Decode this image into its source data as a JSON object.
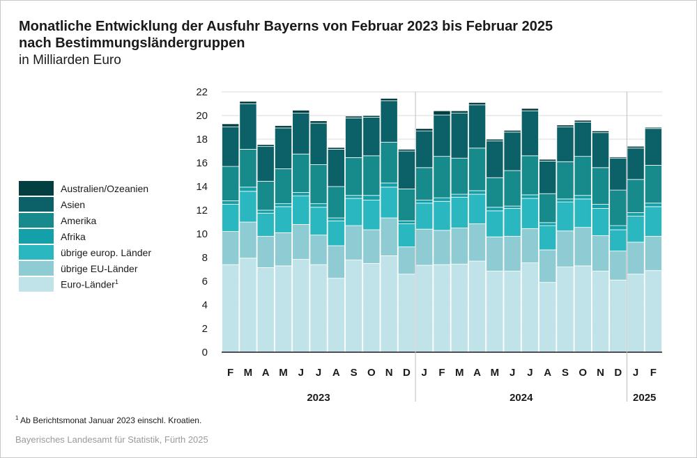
{
  "title_line1": "Monatliche Entwicklung der Ausfuhr Bayerns von Februar 2023 bis Februar 2025",
  "title_line2": "nach Bestimmungsländergruppen",
  "subtitle": "in Milliarden Euro",
  "footnote": {
    "marker": "1",
    "text": "Ab Berichtsmonat Januar 2023 einschl. Kroatien."
  },
  "source": "Bayerisches Landesamt für Statistik, Fürth 2025",
  "chart_data": {
    "type": "bar",
    "stacked": true,
    "ylim": [
      0,
      22
    ],
    "yticks": [
      0,
      2,
      4,
      6,
      8,
      10,
      12,
      14,
      16,
      18,
      20,
      22
    ],
    "grid": true,
    "legend_position": "left",
    "categories": [
      "F",
      "M",
      "A",
      "M",
      "J",
      "J",
      "A",
      "S",
      "O",
      "N",
      "D",
      "J",
      "F",
      "M",
      "A",
      "M",
      "J",
      "J",
      "A",
      "S",
      "O",
      "N",
      "D",
      "J",
      "F"
    ],
    "years": [
      {
        "label": "2023",
        "start": 0,
        "end": 10
      },
      {
        "label": "2024",
        "start": 11,
        "end": 22
      },
      {
        "label": "2025",
        "start": 23,
        "end": 24
      }
    ],
    "series": [
      {
        "name": "Euro-Länder",
        "sup": "1",
        "color": "#bfe3e8",
        "values": [
          7.4,
          7.95,
          7.15,
          7.3,
          7.85,
          7.4,
          6.25,
          7.8,
          7.5,
          8.15,
          6.6,
          7.35,
          7.4,
          7.45,
          7.7,
          6.85,
          6.85,
          7.55,
          5.9,
          7.2,
          7.3,
          6.85,
          6.1,
          6.6,
          6.9
        ]
      },
      {
        "name": "übrige EU-Länder",
        "color": "#8ecbd3",
        "values": [
          2.8,
          3.05,
          2.65,
          2.8,
          2.95,
          2.5,
          2.75,
          2.9,
          2.85,
          3.2,
          2.3,
          3.05,
          2.9,
          3.05,
          3.15,
          2.9,
          2.95,
          2.9,
          2.75,
          3.05,
          3.25,
          3.0,
          2.45,
          2.7,
          2.9
        ]
      },
      {
        "name": "übrige europ. Länder",
        "color": "#2ab7c0",
        "values": [
          2.3,
          2.6,
          1.95,
          2.2,
          2.4,
          2.35,
          2.1,
          2.3,
          2.5,
          2.6,
          1.95,
          2.2,
          2.45,
          2.6,
          2.5,
          2.2,
          2.35,
          2.55,
          2.05,
          2.45,
          2.4,
          2.3,
          1.8,
          2.2,
          2.5
        ]
      },
      {
        "name": "Afrika",
        "color": "#13a0a8",
        "values": [
          0.3,
          0.35,
          0.25,
          0.25,
          0.3,
          0.3,
          0.25,
          0.25,
          0.4,
          0.35,
          0.25,
          0.25,
          0.3,
          0.25,
          0.3,
          0.3,
          0.2,
          0.3,
          0.25,
          0.25,
          0.3,
          0.35,
          0.35,
          0.3,
          0.3
        ]
      },
      {
        "name": "Amerika",
        "color": "#178a8c",
        "values": [
          2.9,
          3.2,
          2.45,
          2.95,
          3.25,
          3.3,
          2.65,
          3.2,
          3.35,
          3.45,
          2.7,
          2.75,
          3.5,
          3.05,
          3.6,
          2.5,
          3.0,
          3.3,
          2.45,
          3.15,
          3.3,
          3.1,
          3.0,
          2.8,
          3.2
        ]
      },
      {
        "name": "Asien",
        "color": "#0b6167",
        "values": [
          3.35,
          3.85,
          2.95,
          3.45,
          3.45,
          3.5,
          3.15,
          3.35,
          3.25,
          3.5,
          3.2,
          3.1,
          3.5,
          3.8,
          3.65,
          3.1,
          3.25,
          3.8,
          2.75,
          2.95,
          2.9,
          2.95,
          2.7,
          2.65,
          3.1
        ]
      },
      {
        "name": "Australien/Ozeanien",
        "color": "#033f40",
        "values": [
          0.25,
          0.2,
          0.15,
          0.2,
          0.25,
          0.2,
          0.15,
          0.15,
          0.15,
          0.2,
          0.15,
          0.2,
          0.35,
          0.2,
          0.2,
          0.15,
          0.15,
          0.2,
          0.15,
          0.15,
          0.15,
          0.15,
          0.1,
          0.15,
          0.1
        ]
      }
    ]
  }
}
